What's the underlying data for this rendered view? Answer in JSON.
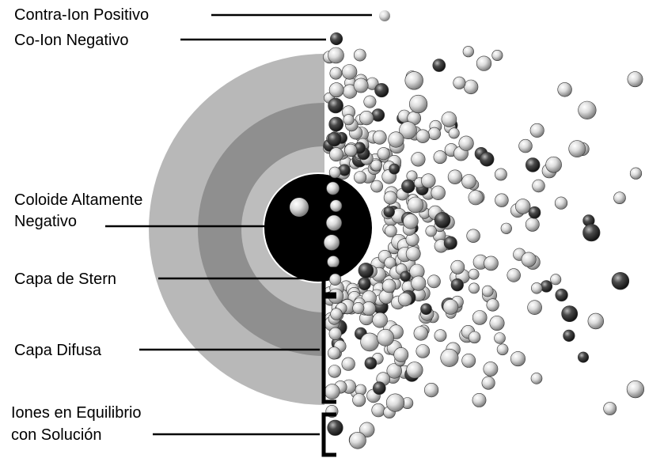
{
  "labels": {
    "positive_counterion": "Contra-Ion Positivo",
    "negative_coion": "Co-Ion Negativo",
    "colloid_line1": "Coloide Altamente",
    "colloid_line2": "Negativo",
    "stern_layer": "Capa de Stern",
    "diffuse_layer": "Capa Difusa",
    "equilibrium_line1": "Iones en Equilibrio",
    "equilibrium_line2": "con Solución"
  },
  "colors": {
    "outer_band": "#b8b8b8",
    "mid_band": "#8f8f8f",
    "inner_band": "#bdbdbd",
    "colloid": "#000000",
    "positive_ion": "#d9d9d9",
    "negative_ion": "#3a3a3a"
  }
}
